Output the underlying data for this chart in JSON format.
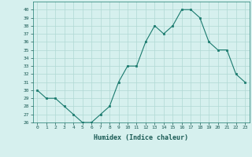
{
  "x": [
    0,
    1,
    2,
    3,
    4,
    5,
    6,
    7,
    8,
    9,
    10,
    11,
    12,
    13,
    14,
    15,
    16,
    17,
    18,
    19,
    20,
    21,
    22,
    23
  ],
  "y": [
    30,
    29,
    29,
    28,
    27,
    26,
    26,
    27,
    28,
    31,
    33,
    33,
    36,
    38,
    37,
    38,
    40,
    40,
    39,
    36,
    35,
    35,
    32,
    31
  ],
  "xlabel": "Humidex (Indice chaleur)",
  "ylim": [
    26,
    41
  ],
  "xlim": [
    -0.5,
    23.5
  ],
  "line_color": "#1a7a6e",
  "marker_color": "#1a7a6e",
  "bg_color": "#d6f0ee",
  "grid_color": "#b0d8d4",
  "yticks": [
    26,
    27,
    28,
    29,
    30,
    31,
    32,
    33,
    34,
    35,
    36,
    37,
    38,
    39,
    40
  ],
  "xtick_labels": [
    "0",
    "1",
    "2",
    "3",
    "4",
    "5",
    "6",
    "7",
    "8",
    "9",
    "10",
    "11",
    "12",
    "13",
    "14",
    "15",
    "16",
    "17",
    "18",
    "19",
    "20",
    "21",
    "22",
    "23"
  ]
}
